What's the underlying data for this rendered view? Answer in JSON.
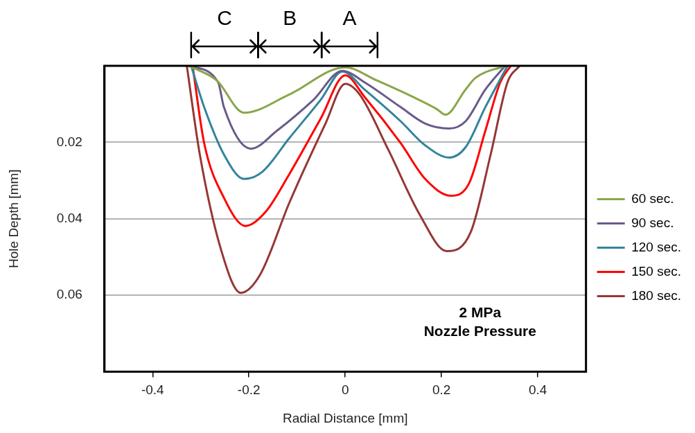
{
  "chart_data": {
    "type": "line",
    "xlabel": "Radial Distance [mm]",
    "ylabel": "Hole Depth [mm]",
    "xlim": [
      -0.5,
      0.5
    ],
    "xticks": [
      -0.4,
      -0.2,
      0,
      0.2,
      0.4
    ],
    "ylim": [
      0.08,
      0
    ],
    "yticks": [
      0.02,
      0.04,
      0.06
    ],
    "grid": "y",
    "legend": "right",
    "marker": "none",
    "line_style": "solid",
    "annotations": [
      "2 MPa\nNozzle Pressure",
      "C",
      "B",
      "A"
    ],
    "series": [
      {
        "name": "60 sec.",
        "color": "#8aa64a",
        "x": [
          -0.325,
          -0.267,
          -0.21,
          -0.116,
          0,
          0.065,
          0.14,
          0.19,
          0.208,
          0.25,
          0.27,
          0.332
        ],
        "values": [
          0,
          0.0038,
          0.0123,
          0.0075,
          0.0004,
          0.0038,
          0.0081,
          0.0113,
          0.0128,
          0.0062,
          0.0032,
          0
        ]
      },
      {
        "name": "90 sec.",
        "color": "#6a5a8a",
        "x": [
          -0.325,
          -0.264,
          -0.252,
          -0.196,
          -0.142,
          -0.066,
          -0.006,
          0.04,
          0.115,
          0.166,
          0.216,
          0.25,
          0.291,
          0.332
        ],
        "values": [
          0,
          0.0043,
          0.0108,
          0.0217,
          0.017,
          0.0089,
          0.0013,
          0.0043,
          0.0108,
          0.0151,
          0.0164,
          0.0145,
          0.0062,
          0
        ]
      },
      {
        "name": "120 sec.",
        "color": "#31859c",
        "x": [
          -0.32,
          -0.293,
          -0.252,
          -0.21,
          -0.172,
          -0.116,
          -0.051,
          -0.006,
          0.04,
          0.115,
          0.166,
          0.216,
          0.25,
          0.291,
          0.337
        ],
        "values": [
          0,
          0.0108,
          0.0232,
          0.0296,
          0.0277,
          0.0189,
          0.0089,
          0.0015,
          0.0062,
          0.0145,
          0.0208,
          0.024,
          0.0213,
          0.0108,
          0
        ]
      },
      {
        "name": "150 sec.",
        "color": "#ff0000",
        "x": [
          -0.317,
          -0.293,
          -0.252,
          -0.207,
          -0.166,
          -0.116,
          -0.051,
          0,
          0.04,
          0.115,
          0.166,
          0.22,
          0.257,
          0.291,
          0.322,
          0.344
        ],
        "values": [
          0,
          0.0202,
          0.0345,
          0.0419,
          0.0383,
          0.0283,
          0.0138,
          0.0025,
          0.0081,
          0.0202,
          0.0296,
          0.034,
          0.0308,
          0.017,
          0.0043,
          0
        ]
      },
      {
        "name": "180 sec.",
        "color": "#953735",
        "x": [
          -0.329,
          -0.302,
          -0.257,
          -0.217,
          -0.177,
          -0.116,
          -0.041,
          0,
          0.03,
          0.09,
          0.155,
          0.211,
          0.261,
          0.302,
          0.337,
          0.362
        ],
        "values": [
          0,
          0.0232,
          0.0485,
          0.0594,
          0.0547,
          0.0358,
          0.0151,
          0.0047,
          0.0075,
          0.0221,
          0.039,
          0.0485,
          0.0434,
          0.0232,
          0.0043,
          0
        ]
      }
    ]
  }
}
